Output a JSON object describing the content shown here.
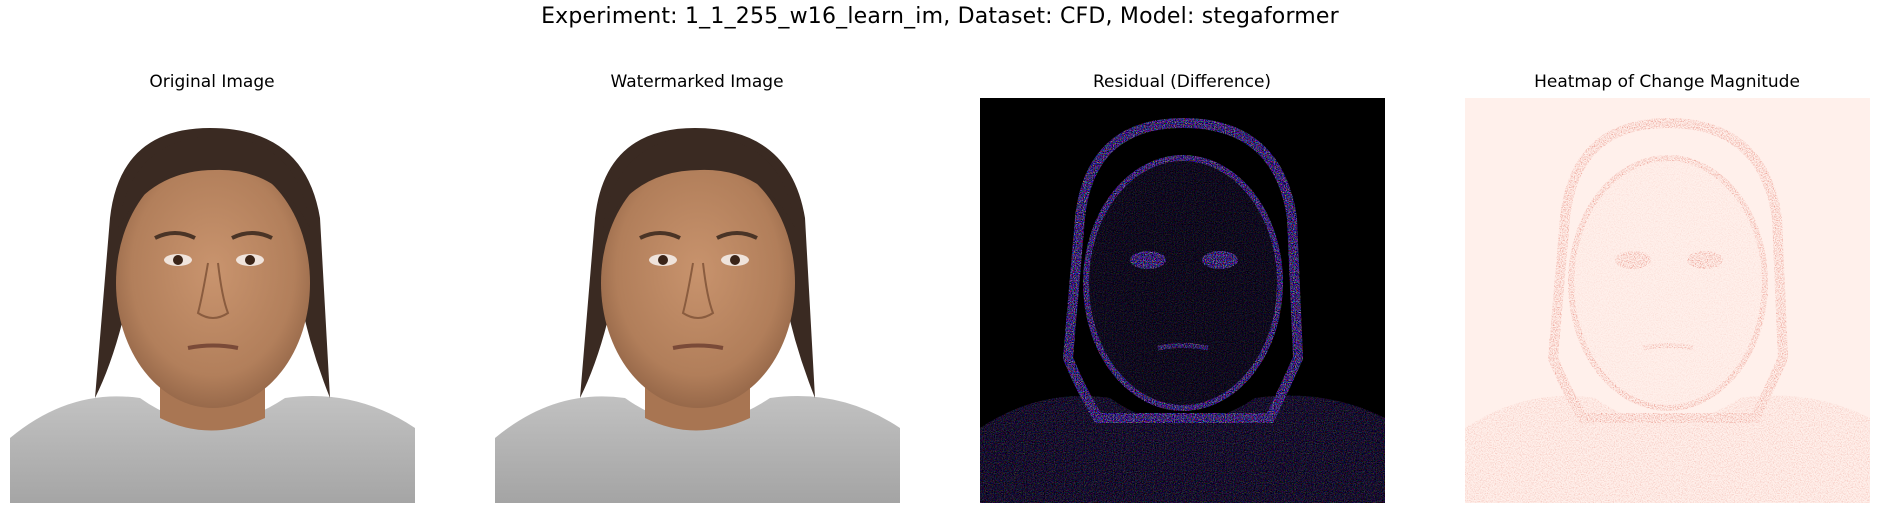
{
  "figure": {
    "title": "Experiment: 1_1_255_w16_learn_im, Dataset: CFD, Model: stegaformer"
  },
  "panels": [
    {
      "title": "Original Image"
    },
    {
      "title": "Watermarked Image"
    },
    {
      "title": "Residual (Difference)"
    },
    {
      "title": "Heatmap of Change Magnitude"
    }
  ],
  "colors": {
    "background": "#ffffff",
    "skin": "#b88460",
    "hair": "#3a2a22",
    "shirt": "#b4b4b4",
    "residual_bg": "#000000",
    "heatmap_low": "#fff0eb",
    "heatmap_high": "#a50f15"
  }
}
